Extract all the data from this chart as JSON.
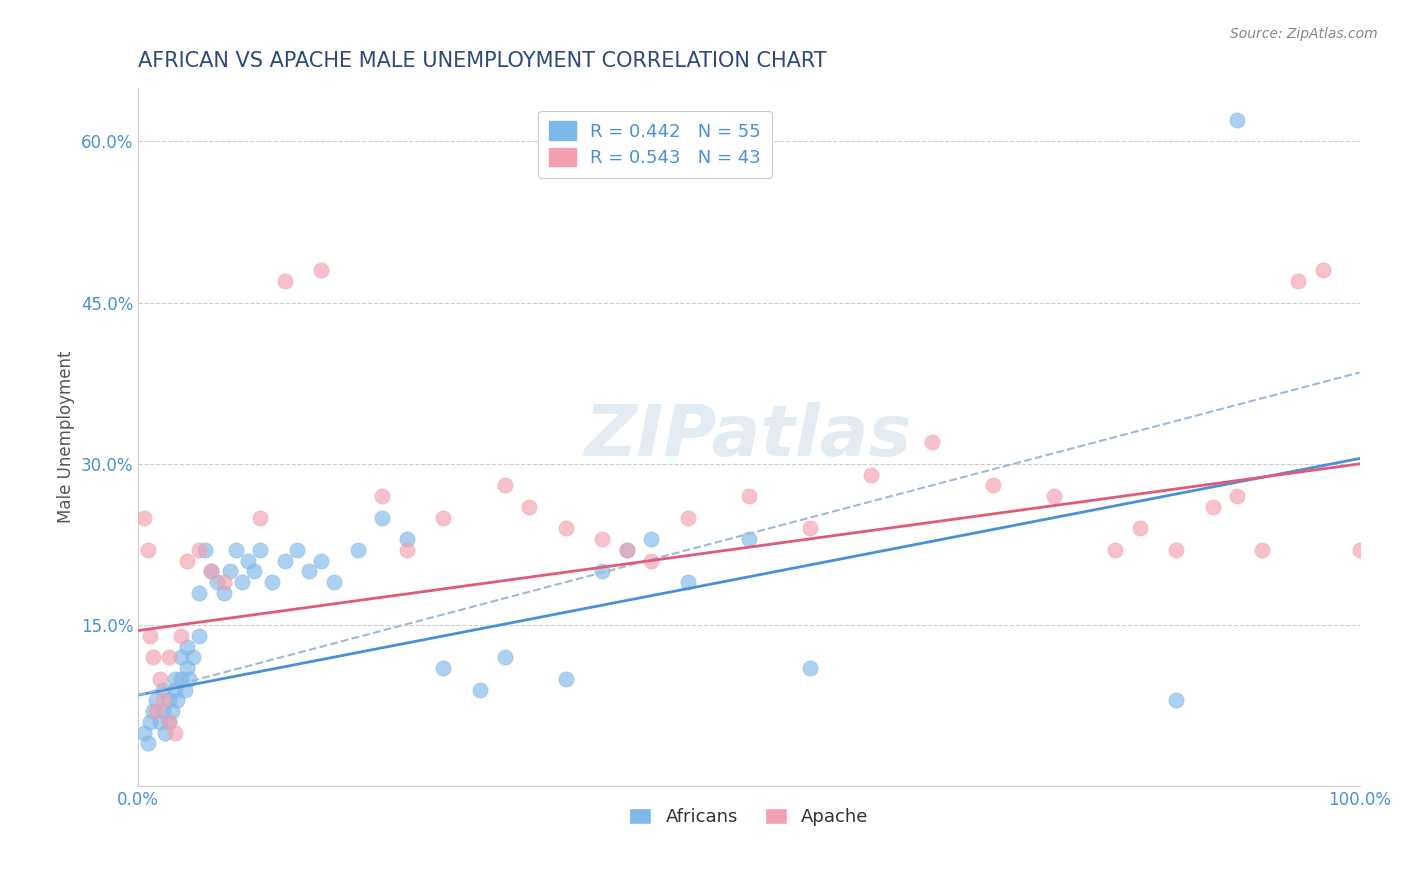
{
  "title": "AFRICAN VS APACHE MALE UNEMPLOYMENT CORRELATION CHART",
  "source": "Source: ZipAtlas.com",
  "xlabel": "",
  "ylabel": "Male Unemployment",
  "xlim": [
    0,
    1.0
  ],
  "ylim": [
    0,
    0.65
  ],
  "xticks": [
    0.0,
    0.25,
    0.5,
    0.75,
    1.0
  ],
  "xtick_labels": [
    "0.0%",
    "",
    "",
    "",
    "100.0%"
  ],
  "yticks": [
    0.0,
    0.15,
    0.3,
    0.45,
    0.6
  ],
  "ytick_labels": [
    "",
    "15.0%",
    "30.0%",
    "45.0%",
    "60.0%"
  ],
  "africans_R": 0.442,
  "africans_N": 55,
  "apache_R": 0.543,
  "apache_N": 43,
  "africans_color": "#7eb8e8",
  "apache_color": "#f4a0b0",
  "africans_line_color": "#4a90d9",
  "apache_line_color": "#e05a7a",
  "africans_dash_color": "#a0b8d8",
  "background_color": "#ffffff",
  "grid_color": "#cccccc",
  "title_color": "#2d4a7a",
  "tick_color": "#4a90d9",
  "africans_x": [
    0.005,
    0.008,
    0.01,
    0.012,
    0.015,
    0.018,
    0.02,
    0.02,
    0.022,
    0.025,
    0.025,
    0.028,
    0.03,
    0.03,
    0.032,
    0.035,
    0.035,
    0.038,
    0.04,
    0.04,
    0.042,
    0.045,
    0.05,
    0.05,
    0.055,
    0.06,
    0.065,
    0.07,
    0.075,
    0.08,
    0.085,
    0.09,
    0.095,
    0.1,
    0.11,
    0.12,
    0.13,
    0.14,
    0.15,
    0.16,
    0.18,
    0.2,
    0.22,
    0.25,
    0.28,
    0.3,
    0.35,
    0.38,
    0.4,
    0.42,
    0.45,
    0.5,
    0.55,
    0.85,
    0.9
  ],
  "africans_y": [
    0.05,
    0.04,
    0.06,
    0.07,
    0.08,
    0.06,
    0.07,
    0.09,
    0.05,
    0.06,
    0.08,
    0.07,
    0.09,
    0.1,
    0.08,
    0.1,
    0.12,
    0.09,
    0.11,
    0.13,
    0.1,
    0.12,
    0.14,
    0.18,
    0.22,
    0.2,
    0.19,
    0.18,
    0.2,
    0.22,
    0.19,
    0.21,
    0.2,
    0.22,
    0.19,
    0.21,
    0.22,
    0.2,
    0.21,
    0.19,
    0.22,
    0.25,
    0.23,
    0.11,
    0.09,
    0.12,
    0.1,
    0.2,
    0.22,
    0.23,
    0.19,
    0.23,
    0.11,
    0.08,
    0.62
  ],
  "apache_x": [
    0.005,
    0.008,
    0.01,
    0.012,
    0.015,
    0.018,
    0.02,
    0.025,
    0.025,
    0.03,
    0.035,
    0.04,
    0.05,
    0.06,
    0.07,
    0.1,
    0.12,
    0.15,
    0.2,
    0.22,
    0.25,
    0.3,
    0.32,
    0.35,
    0.38,
    0.4,
    0.42,
    0.45,
    0.5,
    0.55,
    0.6,
    0.65,
    0.7,
    0.75,
    0.8,
    0.82,
    0.85,
    0.88,
    0.9,
    0.92,
    0.95,
    0.97,
    1.0
  ],
  "apache_y": [
    0.25,
    0.22,
    0.14,
    0.12,
    0.07,
    0.1,
    0.08,
    0.12,
    0.06,
    0.05,
    0.14,
    0.21,
    0.22,
    0.2,
    0.19,
    0.25,
    0.47,
    0.48,
    0.27,
    0.22,
    0.25,
    0.28,
    0.26,
    0.24,
    0.23,
    0.22,
    0.21,
    0.25,
    0.27,
    0.24,
    0.29,
    0.32,
    0.28,
    0.27,
    0.22,
    0.24,
    0.22,
    0.26,
    0.27,
    0.22,
    0.47,
    0.48,
    0.22
  ],
  "watermark": "ZIPatlas",
  "marker_size": 120,
  "africans_intercept": 0.085,
  "africans_slope": 0.22,
  "apache_intercept": 0.145,
  "apache_slope": 0.155
}
